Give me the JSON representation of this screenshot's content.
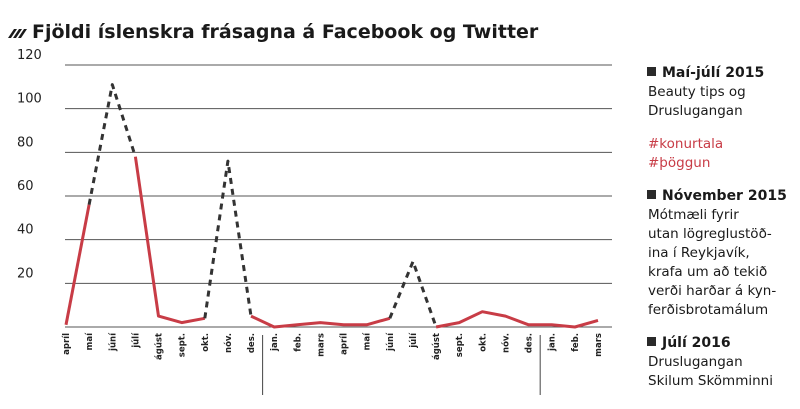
{
  "title": "Fjöldi íslenskra frásagna á Facebook og Twitter",
  "colors": {
    "solid_line": "#c83c46",
    "dashed_line": "#333333",
    "grid": "#555555",
    "text": "#1a1a1a",
    "hashtag": "#c83c46"
  },
  "chart_data": {
    "type": "line",
    "title": "Fjöldi íslenskra frásagna á Facebook og Twitter",
    "xlabel": "",
    "ylabel": "",
    "ylim": [
      0,
      120
    ],
    "yticks": [
      20,
      40,
      60,
      80,
      100,
      120
    ],
    "grid": true,
    "categories": [
      "apríl",
      "maí",
      "júní",
      "júlí",
      "ágúst",
      "sept.",
      "okt.",
      "nóv.",
      "des.",
      "jan.",
      "feb.",
      "mars",
      "apríl",
      "maí",
      "júní",
      "júlí",
      "ágúst",
      "sept.",
      "okt.",
      "nóv.",
      "des.",
      "jan.",
      "feb.",
      "mars"
    ],
    "values": [
      1,
      56,
      111,
      78,
      5,
      2,
      4,
      76,
      5,
      0,
      1,
      2,
      1,
      1,
      4,
      30,
      0,
      2,
      7,
      5,
      1,
      1,
      0,
      3
    ],
    "dashed_segments": [
      [
        1,
        3
      ],
      [
        6,
        8
      ],
      [
        14,
        16
      ]
    ],
    "year_breaks_after": [
      8,
      20
    ]
  },
  "annotations": [
    {
      "heading": "Maí-júlí 2015",
      "lines": [
        "Beauty tips og",
        "Druslugangan"
      ]
    },
    {
      "heading": "",
      "hashtags": [
        "#konurtala",
        "#þöggun"
      ]
    },
    {
      "heading": "Nóvember 2015",
      "lines": [
        "Mótmæli fyrir",
        "utan lögreglustöð-",
        "ina í Reykjavík,",
        "krafa um að tekið",
        "verði harðar á kyn-",
        "ferðisbrotamálum"
      ]
    },
    {
      "heading": "Júlí 2016",
      "lines": [
        "Druslugangan",
        "Skilum Skömminni"
      ]
    }
  ]
}
